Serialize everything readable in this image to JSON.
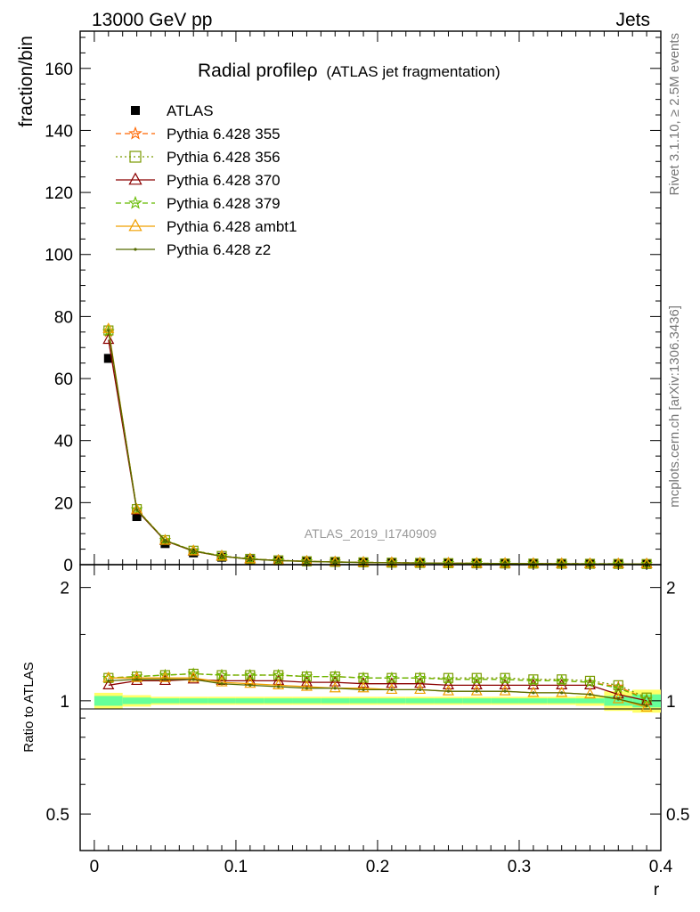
{
  "header": {
    "left": "13000 GeV pp",
    "right": "Jets"
  },
  "side_labels": {
    "rivet": "Rivet 3.1.10, ≥ 2.5M events",
    "mcplots": "mcplots.cern.ch [arXiv:1306.3436]"
  },
  "colors": {
    "ATLAS": "#000000",
    "Pythia 6.428 355": "#ff6600",
    "Pythia 6.428 356": "#7a9a00",
    "Pythia 6.428 370": "#8b0000",
    "Pythia 6.428 379": "#66bb00",
    "Pythia 6.428 ambt1": "#f0a000",
    "Pythia 6.428 z2": "#556b00",
    "band_inner": "#66ff99",
    "band_outer": "#ffff66"
  },
  "chart_data": [
    {
      "type": "line",
      "title": "Radial profileρ",
      "subtitle": "(ATLAS jet fragmentation)",
      "watermark": "ATLAS_2019_I1740909",
      "ylabel": "fraction/bin",
      "xlabel": "",
      "xlim": [
        -0.01,
        0.4
      ],
      "ylim": [
        0,
        172
      ],
      "yticks": [
        "0",
        "20",
        "40",
        "60",
        "80",
        "100",
        "120",
        "140",
        "160"
      ],
      "ytick_values": [
        0,
        20,
        40,
        60,
        80,
        100,
        120,
        140,
        160
      ],
      "legend_position": "top-left",
      "x": [
        0.01,
        0.03,
        0.05,
        0.07,
        0.09,
        0.11,
        0.13,
        0.15,
        0.17,
        0.19,
        0.21,
        0.23,
        0.25,
        0.27,
        0.29,
        0.31,
        0.33,
        0.35,
        0.37,
        0.39
      ],
      "series": [
        {
          "name": "ATLAS",
          "marker": "square",
          "style": "none",
          "values": [
            66.5,
            15.5,
            6.8,
            3.8,
            2.4,
            1.6,
            1.2,
            0.95,
            0.78,
            0.65,
            0.55,
            0.48,
            0.42,
            0.37,
            0.33,
            0.3,
            0.27,
            0.25,
            0.23,
            0.21
          ]
        },
        {
          "name": "Pythia 6.428 355",
          "marker": "star",
          "style": "dashed",
          "values": [
            75.0,
            17.8,
            7.9,
            4.5,
            2.8,
            1.86,
            1.39,
            1.1,
            0.9,
            0.75,
            0.63,
            0.55,
            0.48,
            0.42,
            0.38,
            0.34,
            0.31,
            0.28,
            0.25,
            0.21
          ]
        },
        {
          "name": "Pythia 6.428 356",
          "marker": "open-square",
          "style": "dotted",
          "values": [
            75.5,
            17.9,
            7.9,
            4.5,
            2.8,
            1.87,
            1.4,
            1.1,
            0.9,
            0.75,
            0.64,
            0.55,
            0.49,
            0.43,
            0.38,
            0.34,
            0.31,
            0.28,
            0.25,
            0.21
          ]
        },
        {
          "name": "Pythia 6.428 370",
          "marker": "open-triangle",
          "style": "solid",
          "values": [
            72.5,
            17.5,
            7.7,
            4.3,
            2.7,
            1.8,
            1.34,
            1.05,
            0.86,
            0.71,
            0.6,
            0.52,
            0.45,
            0.39,
            0.35,
            0.31,
            0.28,
            0.26,
            0.23,
            0.21
          ]
        },
        {
          "name": "Pythia 6.428 379",
          "marker": "star",
          "style": "dashed",
          "values": [
            75.3,
            17.8,
            7.9,
            4.5,
            2.8,
            1.86,
            1.39,
            1.1,
            0.9,
            0.75,
            0.63,
            0.55,
            0.48,
            0.42,
            0.38,
            0.34,
            0.31,
            0.28,
            0.25,
            0.21
          ]
        },
        {
          "name": "Pythia 6.428 ambt1",
          "marker": "open-triangle",
          "style": "solid",
          "values": [
            76.0,
            17.8,
            7.8,
            4.4,
            2.7,
            1.78,
            1.3,
            1.02,
            0.84,
            0.7,
            0.59,
            0.51,
            0.44,
            0.39,
            0.35,
            0.31,
            0.28,
            0.26,
            0.23,
            0.2
          ]
        },
        {
          "name": "Pythia 6.428 z2",
          "marker": "dot",
          "style": "solid",
          "values": [
            75.5,
            17.7,
            7.8,
            4.4,
            2.7,
            1.77,
            1.3,
            1.02,
            0.84,
            0.7,
            0.59,
            0.51,
            0.44,
            0.38,
            0.34,
            0.31,
            0.28,
            0.26,
            0.22,
            0.2
          ]
        }
      ]
    },
    {
      "type": "line",
      "ylabel": "Ratio to ATLAS",
      "xlabel": "r",
      "xlim": [
        -0.01,
        0.4
      ],
      "ylim": [
        0.4,
        2.3
      ],
      "yscale": "log",
      "yticks": [
        "0.5",
        "1",
        "2"
      ],
      "ytick_values": [
        0.5,
        1,
        2
      ],
      "xticks": [
        "0",
        "0.1",
        "0.2",
        "0.3",
        "0.4"
      ],
      "xtick_values": [
        0,
        0.1,
        0.2,
        0.3,
        0.4
      ],
      "x": [
        0.01,
        0.03,
        0.05,
        0.07,
        0.09,
        0.11,
        0.13,
        0.15,
        0.17,
        0.19,
        0.21,
        0.23,
        0.25,
        0.27,
        0.29,
        0.31,
        0.33,
        0.35,
        0.37,
        0.39
      ],
      "band_inner": [
        0.03,
        0.02,
        0.015,
        0.015,
        0.015,
        0.015,
        0.015,
        0.015,
        0.015,
        0.015,
        0.015,
        0.015,
        0.015,
        0.015,
        0.015,
        0.015,
        0.015,
        0.015,
        0.03,
        0.04
      ],
      "band_outer": [
        0.05,
        0.035,
        0.025,
        0.025,
        0.025,
        0.025,
        0.025,
        0.025,
        0.025,
        0.025,
        0.025,
        0.025,
        0.025,
        0.025,
        0.025,
        0.025,
        0.025,
        0.03,
        0.06,
        0.07
      ],
      "series": [
        {
          "name": "Pythia 6.428 355",
          "values": [
            1.15,
            1.16,
            1.17,
            1.18,
            1.17,
            1.17,
            1.17,
            1.16,
            1.16,
            1.15,
            1.15,
            1.15,
            1.14,
            1.14,
            1.14,
            1.13,
            1.13,
            1.12,
            1.09,
            1.01
          ]
        },
        {
          "name": "Pythia 6.428 356",
          "values": [
            1.15,
            1.16,
            1.17,
            1.18,
            1.17,
            1.17,
            1.17,
            1.16,
            1.16,
            1.15,
            1.15,
            1.15,
            1.15,
            1.15,
            1.15,
            1.14,
            1.14,
            1.13,
            1.1,
            1.02
          ]
        },
        {
          "name": "Pythia 6.428 370",
          "values": [
            1.1,
            1.13,
            1.13,
            1.14,
            1.13,
            1.13,
            1.13,
            1.12,
            1.12,
            1.11,
            1.11,
            1.11,
            1.1,
            1.1,
            1.1,
            1.1,
            1.1,
            1.1,
            1.04,
            1.0
          ]
        },
        {
          "name": "Pythia 6.428 379",
          "values": [
            1.15,
            1.16,
            1.17,
            1.18,
            1.17,
            1.17,
            1.17,
            1.16,
            1.16,
            1.15,
            1.15,
            1.15,
            1.14,
            1.14,
            1.14,
            1.13,
            1.13,
            1.12,
            1.08,
            1.01
          ]
        },
        {
          "name": "Pythia 6.428 ambt1",
          "values": [
            1.15,
            1.15,
            1.15,
            1.15,
            1.12,
            1.11,
            1.1,
            1.09,
            1.08,
            1.08,
            1.07,
            1.07,
            1.06,
            1.06,
            1.06,
            1.05,
            1.05,
            1.04,
            1.01,
            0.96
          ]
        },
        {
          "name": "Pythia 6.428 z2",
          "values": [
            1.13,
            1.14,
            1.14,
            1.14,
            1.11,
            1.1,
            1.09,
            1.08,
            1.08,
            1.07,
            1.07,
            1.07,
            1.06,
            1.06,
            1.06,
            1.05,
            1.05,
            1.04,
            1.01,
            0.97
          ]
        }
      ]
    }
  ]
}
